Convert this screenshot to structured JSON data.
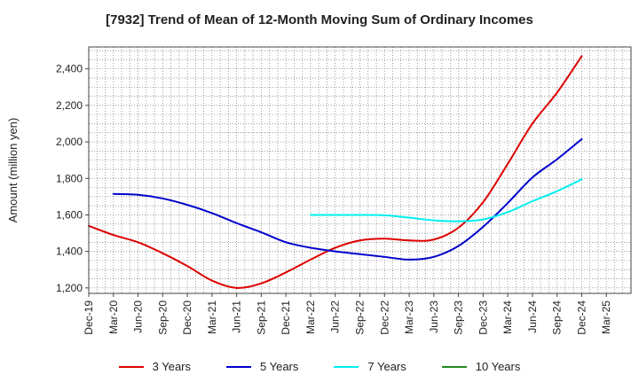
{
  "chart_data": {
    "type": "line",
    "title": "[7932]  Trend of Mean of 12-Month Moving Sum of Ordinary Incomes",
    "xlabel": "",
    "ylabel": "Amount (million yen)",
    "ylim": [
      1170,
      2520
    ],
    "yticks": [
      1200,
      1400,
      1600,
      1800,
      2000,
      2200,
      2400
    ],
    "ytick_labels": [
      "1,200",
      "1,400",
      "1,600",
      "1,800",
      "2,000",
      "2,200",
      "2,400"
    ],
    "x_range": [
      0,
      66
    ],
    "categories": [
      "Dec-19",
      "Mar-20",
      "Jun-20",
      "Sep-20",
      "Dec-20",
      "Mar-21",
      "Jun-21",
      "Sep-21",
      "Dec-21",
      "Mar-22",
      "Jun-22",
      "Sep-22",
      "Dec-22",
      "Mar-23",
      "Jun-23",
      "Sep-23",
      "Dec-23",
      "Mar-24",
      "Jun-24",
      "Sep-24",
      "Dec-24",
      "Mar-25"
    ],
    "grid": true,
    "legend_position": "bottom",
    "series": [
      {
        "name": "3 Years",
        "color": "#dd0000",
        "x": [
          0,
          3,
          6,
          9,
          12,
          15,
          18,
          21,
          24,
          27,
          30,
          33,
          36,
          39,
          42,
          45,
          48,
          51,
          54,
          57,
          60
        ],
        "values": [
          1540,
          1490,
          1450,
          1390,
          1320,
          1240,
          1200,
          1225,
          1285,
          1355,
          1420,
          1460,
          1470,
          1460,
          1465,
          1530,
          1670,
          1880,
          2100,
          2270,
          2470
        ]
      },
      {
        "name": "5 Years",
        "color": "#0000cc",
        "x": [
          3,
          6,
          9,
          12,
          15,
          18,
          21,
          24,
          27,
          30,
          33,
          36,
          39,
          42,
          45,
          48,
          51,
          54,
          57,
          60
        ],
        "values": [
          1715,
          1710,
          1690,
          1655,
          1610,
          1555,
          1505,
          1450,
          1420,
          1400,
          1385,
          1370,
          1355,
          1370,
          1430,
          1535,
          1665,
          1805,
          1905,
          2015
        ]
      },
      {
        "name": "7 Years",
        "color": "#00eeee",
        "x": [
          27,
          30,
          33,
          36,
          39,
          42,
          45,
          48,
          51,
          54,
          57,
          60
        ],
        "values": [
          1600,
          1600,
          1600,
          1598,
          1585,
          1570,
          1565,
          1575,
          1615,
          1675,
          1730,
          1795
        ]
      },
      {
        "name": "10 Years",
        "color": "#228822",
        "x": [],
        "values": []
      }
    ]
  }
}
